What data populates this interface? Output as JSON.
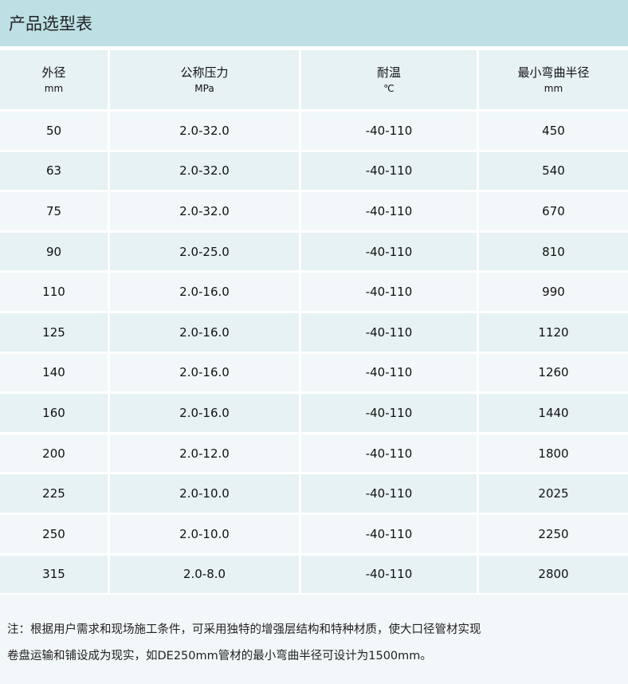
{
  "title": "产品选型表",
  "headers": [
    {
      "label": "外径",
      "unit": "mm"
    },
    {
      "label": "公称压力",
      "unit": "MPa"
    },
    {
      "label": "耐温",
      "unit": "℃"
    },
    {
      "label": "最小弯曲半径",
      "unit": "mm"
    }
  ],
  "rows": [
    [
      "50",
      "2.0-32.0",
      "-40-110",
      "450"
    ],
    [
      "63",
      "2.0-32.0",
      "-40-110",
      "540"
    ],
    [
      "75",
      "2.0-32.0",
      "-40-110",
      "670"
    ],
    [
      "90",
      "2.0-25.0",
      "-40-110",
      "810"
    ],
    [
      "110",
      "2.0-16.0",
      "-40-110",
      "990"
    ],
    [
      "125",
      "2.0-16.0",
      "-40-110",
      "1120"
    ],
    [
      "140",
      "2.0-16.0",
      "-40-110",
      "1260"
    ],
    [
      "160",
      "2.0-16.0",
      "-40-110",
      "1440"
    ],
    [
      "200",
      "2.0-12.0",
      "-40-110",
      "1800"
    ],
    [
      "225",
      "2.0-10.0",
      "-40-110",
      "2025"
    ],
    [
      "250",
      "2.0-10.0",
      "-40-110",
      "2250"
    ],
    [
      "315",
      "2.0-8.0",
      "-40-110",
      "2800"
    ]
  ],
  "note": [
    "注：根据用户需求和现场施工条件，可采用独特的增强层结构和特种材质，使大口径管材实现",
    "卷盘运输和铺设成为现实，如DE250mm管材的最小弯曲半径可设计为1500mm。"
  ],
  "colors": {
    "title_bg": "#bde0e4",
    "row_light": "#f2f8f9",
    "row_dark": "#e6f2f3"
  }
}
